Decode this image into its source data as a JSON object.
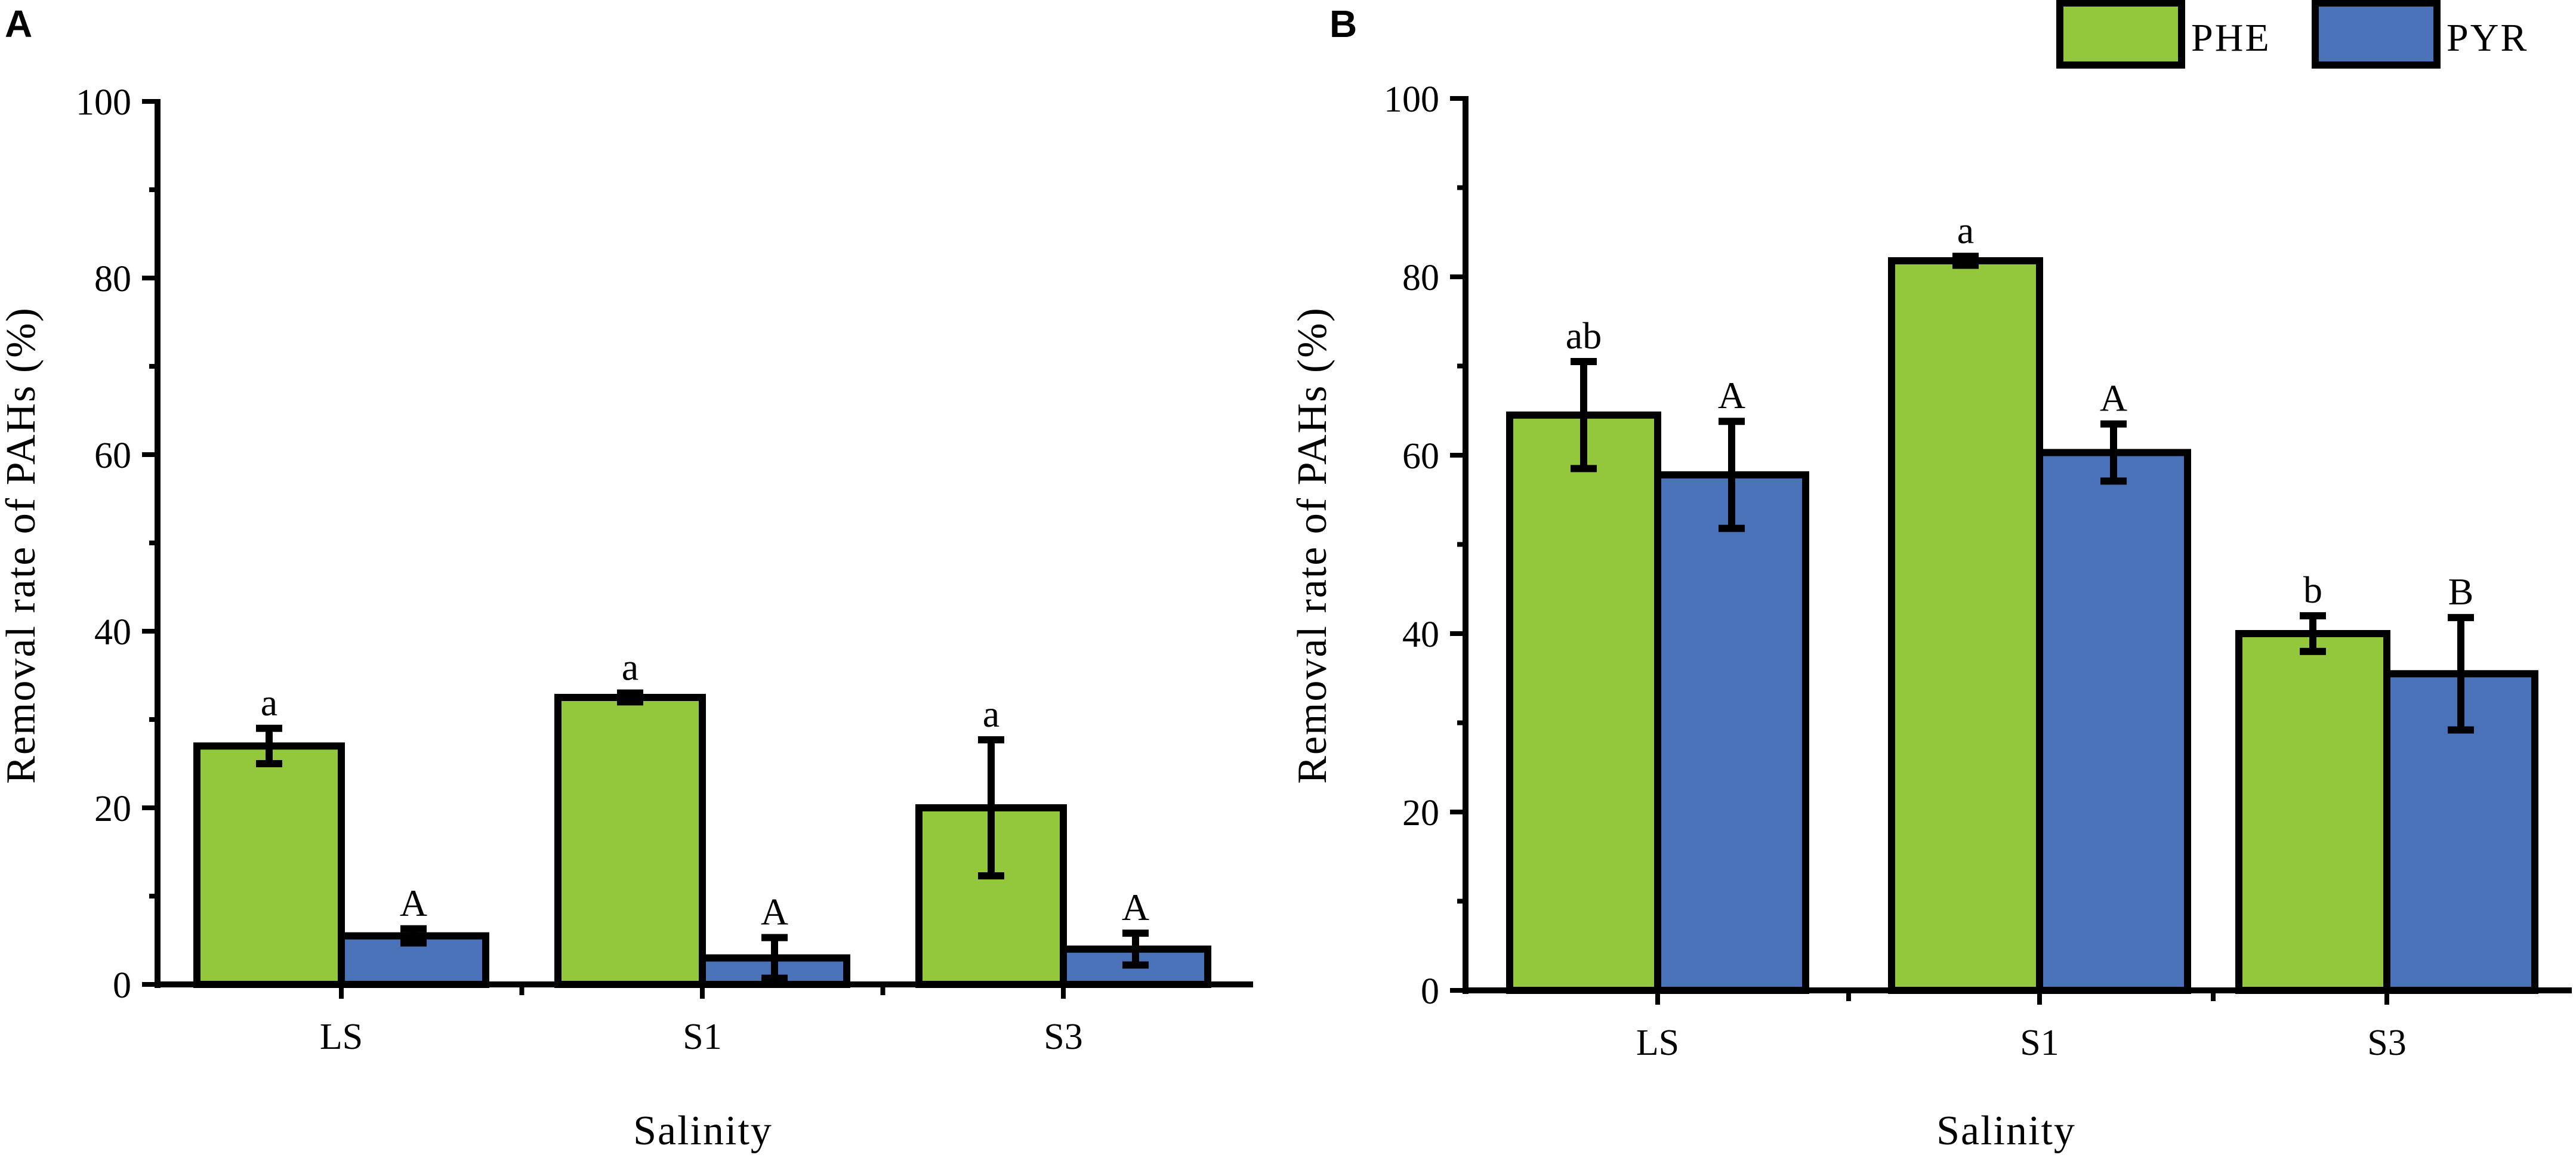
{
  "colors": {
    "PHE": "#94c83c",
    "PYR": "#4a72b8",
    "stroke": "#000000"
  },
  "legend": {
    "entries": [
      "PHE",
      "PYR"
    ]
  },
  "chart_data": [
    {
      "type": "bar",
      "panel": "A",
      "xlabel": "Salinity",
      "ylabel": "Removal rate of PAHs (%)",
      "ylim": [
        0,
        100
      ],
      "yticks": [
        0,
        20,
        40,
        60,
        80,
        100
      ],
      "categories": [
        "LS",
        "S1",
        "S3"
      ],
      "series": [
        {
          "name": "PHE",
          "values": [
            27,
            32.5,
            20
          ],
          "errors": [
            2,
            0.5,
            7.7
          ],
          "sig": [
            "a",
            "a",
            "a"
          ]
        },
        {
          "name": "PYR",
          "values": [
            5.5,
            3,
            4
          ],
          "errors": [
            0.8,
            2.3,
            1.8
          ],
          "sig": [
            "A",
            "A",
            "A"
          ]
        }
      ]
    },
    {
      "type": "bar",
      "panel": "B",
      "xlabel": "Salinity",
      "ylabel": "Removal rate of PAHs (%)",
      "ylim": [
        0,
        100
      ],
      "yticks": [
        0,
        20,
        40,
        60,
        80,
        100
      ],
      "categories": [
        "LS",
        "S1",
        "S3"
      ],
      "series": [
        {
          "name": "PHE",
          "values": [
            64.5,
            81.8,
            40
          ],
          "errors": [
            6,
            0.5,
            2
          ],
          "sig": [
            "ab",
            "a",
            "b"
          ]
        },
        {
          "name": "PYR",
          "values": [
            57.8,
            60.3,
            35.5
          ],
          "errors": [
            6,
            3.2,
            6.3
          ],
          "sig": [
            "A",
            "A",
            "B"
          ]
        }
      ]
    }
  ]
}
